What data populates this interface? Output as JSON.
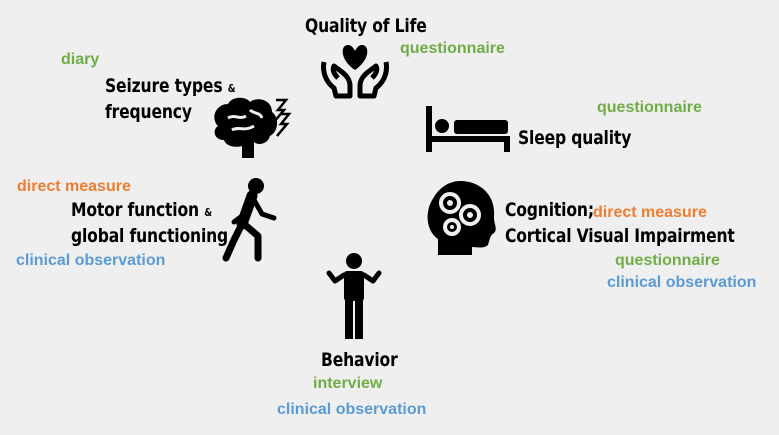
{
  "colors": {
    "questionnaire": "#70ad47",
    "direct_measure": "#ed7d31",
    "clinical_observation": "#5b9bd5",
    "icon": "#000000",
    "background": "#efefef"
  },
  "quality_of_life": {
    "title": "Quality of Life",
    "icon": "hands-heart-icon",
    "method": "questionnaire"
  },
  "seizures": {
    "title_line1": "Seizure types",
    "amp": "&",
    "title_line2": "frequency",
    "icon": "brain-lightning-icon",
    "method": "diary"
  },
  "sleep": {
    "title": "Sleep quality",
    "icon": "bed-icon",
    "method": "questionnaire"
  },
  "motor": {
    "title_line1": "Motor function",
    "amp": "&",
    "title_line2": "global functioning",
    "icon": "walking-person-icon",
    "method1": "direct measure",
    "method2": "clinical observation"
  },
  "cognition": {
    "title_line1": "Cognition;",
    "title_line2": "Cortical Visual Impairment",
    "icon": "head-gears-icon",
    "method1": "direct measure",
    "method2": "questionnaire",
    "method3": "clinical observation"
  },
  "behavior": {
    "title": "Behavior",
    "icon": "shrugging-person-icon",
    "method1": "interview",
    "method2": "clinical observation"
  }
}
